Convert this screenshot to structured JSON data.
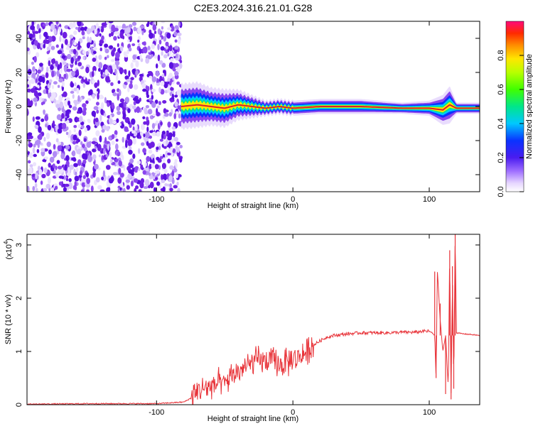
{
  "title": "C2E3.2024.316.21.01.G28",
  "colors": {
    "background": "#ffffff",
    "snr_line": "#e8343a",
    "noise_purple": "#6f1fe3",
    "signal_ridge": "#d9202a",
    "axis": "#000000"
  },
  "spectrogram": {
    "xlabel": "Height of straight line (km)",
    "ylabel": "Frequency (Hz)",
    "xticks": [
      "-100",
      "0",
      "100"
    ],
    "yticks": [
      "40",
      "20",
      "0",
      "-20",
      "-40"
    ],
    "xlim": [
      -195,
      137
    ],
    "ylim": [
      -50,
      50
    ]
  },
  "colorbar": {
    "label": "Normalized spectral amplitude",
    "ticks": [
      "0.0",
      "0.2",
      "0.4",
      "0.6",
      "0.8"
    ],
    "range": [
      0,
      1
    ]
  },
  "snr": {
    "xlabel": "Height of straight line (km)",
    "ylabel": "SNR (10 * v/v)",
    "multiplier": "(x10",
    "multiplier_exp": "4",
    "multiplier_close": ")",
    "xticks": [
      "-100",
      "0",
      "100"
    ],
    "yticks": [
      "0",
      "1",
      "2",
      "3"
    ]
  },
  "chart_data": [
    {
      "type": "heatmap",
      "title": "C2E3.2024.316.21.01.G28",
      "xlabel": "Height of straight line (km)",
      "ylabel": "Frequency (Hz)",
      "xlim": [
        -195,
        137
      ],
      "ylim": [
        -50,
        50
      ],
      "colorbar_label": "Normalized spectral amplitude",
      "colorbar_range": [
        0,
        1
      ],
      "noise_region_x": [
        -195,
        -82
      ],
      "signal_ridge": {
        "x": [
          -82,
          -70,
          -60,
          -50,
          -40,
          -30,
          -20,
          -10,
          0,
          20,
          50,
          80,
          100,
          110,
          115,
          120,
          137
        ],
        "frequency_hz": [
          0,
          1,
          0,
          -1,
          1,
          0,
          -1,
          0,
          -1,
          0,
          0,
          -1,
          -1,
          -2,
          1,
          -1,
          -1
        ],
        "half_width_hz": [
          6,
          6,
          5,
          5,
          4,
          3,
          2,
          2,
          2,
          2,
          2,
          1.5,
          2,
          4,
          5,
          1.5,
          1.5
        ]
      }
    },
    {
      "type": "line",
      "title": "",
      "xlabel": "Height of straight line (km)",
      "ylabel": "SNR (10 * v/v)",
      "y_multiplier": 10000,
      "xlim": [
        -195,
        137
      ],
      "ylim": [
        0,
        3.2
      ],
      "x": [
        -195,
        -150,
        -100,
        -80,
        -75,
        -70,
        -65,
        -60,
        -55,
        -50,
        -45,
        -40,
        -35,
        -30,
        -25,
        -20,
        -15,
        -10,
        -5,
        0,
        5,
        10,
        15,
        20,
        25,
        30,
        40,
        50,
        60,
        70,
        80,
        90,
        95,
        100,
        102,
        104,
        105,
        106,
        108,
        110,
        112,
        114,
        115,
        116,
        117,
        118,
        119,
        120,
        125,
        130,
        137
      ],
      "y": [
        0.01,
        0.02,
        0.02,
        0.05,
        0.12,
        0.25,
        0.32,
        0.35,
        0.4,
        0.38,
        0.55,
        0.62,
        0.7,
        0.78,
        0.85,
        0.8,
        0.82,
        0.75,
        0.78,
        0.85,
        0.9,
        1.0,
        1.12,
        1.2,
        1.27,
        1.3,
        1.33,
        1.35,
        1.35,
        1.35,
        1.36,
        1.36,
        1.38,
        1.38,
        1.35,
        1.3,
        0.5,
        2.5,
        1.6,
        1.0,
        1.3,
        0.3,
        2.9,
        0.15,
        2.4,
        0.4,
        3.2,
        1.35,
        1.33,
        1.32,
        1.3
      ]
    }
  ]
}
